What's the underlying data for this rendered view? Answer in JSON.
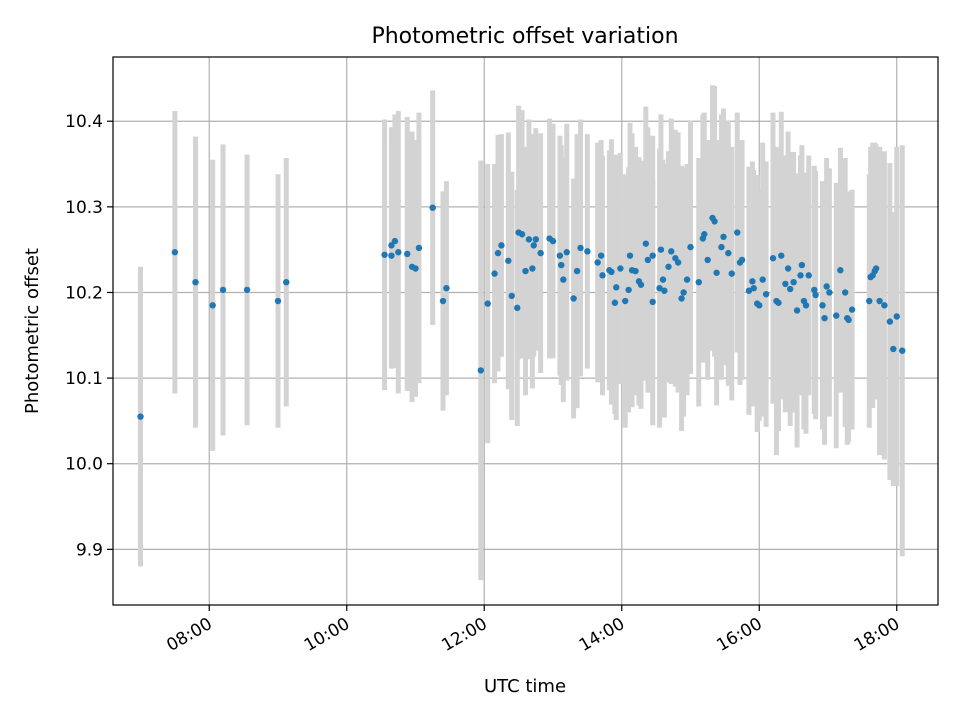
{
  "chart_data": {
    "type": "scatter",
    "title": "Photometric offset variation",
    "xlabel": "UTC time",
    "ylabel": "Photometric offset",
    "grid": true,
    "x_unit": "hours (UTC)",
    "xlim": [
      6.6,
      18.6
    ],
    "ylim": [
      9.835,
      10.475
    ],
    "xticks": [
      {
        "value": 8,
        "label": "08:00"
      },
      {
        "value": 10,
        "label": "10:00"
      },
      {
        "value": 12,
        "label": "12:00"
      },
      {
        "value": 14,
        "label": "14:00"
      },
      {
        "value": 16,
        "label": "16:00"
      },
      {
        "value": 18,
        "label": "18:00"
      }
    ],
    "yticks": [
      {
        "value": 9.9,
        "label": "9.9"
      },
      {
        "value": 10.0,
        "label": "10.0"
      },
      {
        "value": 10.1,
        "label": "10.1"
      },
      {
        "value": 10.2,
        "label": "10.2"
      },
      {
        "value": 10.3,
        "label": "10.3"
      },
      {
        "value": 10.4,
        "label": "10.4"
      }
    ],
    "colors": {
      "point": "#1f77b4",
      "errorbar": "#d3d3d3",
      "grid": "#b0b0b0",
      "axes": "#000000"
    },
    "series": [
      {
        "name": "offset",
        "points": [
          [
            7.0,
            10.055,
            0.175
          ],
          [
            7.5,
            10.247,
            0.165
          ],
          [
            7.8,
            10.212,
            0.17
          ],
          [
            8.05,
            10.185,
            0.17
          ],
          [
            8.2,
            10.203,
            0.17
          ],
          [
            8.55,
            10.203,
            0.158
          ],
          [
            9.0,
            10.19,
            0.148
          ],
          [
            9.12,
            10.212,
            0.145
          ],
          [
            10.55,
            10.244,
            0.158
          ],
          [
            10.65,
            10.255,
            0.138
          ],
          [
            10.7,
            10.26,
            0.148
          ],
          [
            10.65,
            10.243,
            0.132
          ],
          [
            10.75,
            10.247,
            0.165
          ],
          [
            10.88,
            10.245,
            0.16
          ],
          [
            10.95,
            10.23,
            0.158
          ],
          [
            11.0,
            10.228,
            0.15
          ],
          [
            11.05,
            10.252,
            0.158
          ],
          [
            11.25,
            10.299,
            0.137
          ],
          [
            11.4,
            10.19,
            0.128
          ],
          [
            11.45,
            10.205,
            0.125
          ],
          [
            11.95,
            10.109,
            0.245
          ],
          [
            12.05,
            10.187,
            0.163
          ],
          [
            12.15,
            10.222,
            0.128
          ],
          [
            12.2,
            10.246,
            0.138
          ],
          [
            12.25,
            10.255,
            0.13
          ],
          [
            12.35,
            10.237,
            0.15
          ],
          [
            12.4,
            10.196,
            0.145
          ],
          [
            12.48,
            10.182,
            0.138
          ],
          [
            12.5,
            10.27,
            0.148
          ],
          [
            12.55,
            10.268,
            0.145
          ],
          [
            12.6,
            10.225,
            0.145
          ],
          [
            12.65,
            10.262,
            0.14
          ],
          [
            12.7,
            10.228,
            0.14
          ],
          [
            12.72,
            10.255,
            0.13
          ],
          [
            12.75,
            10.262,
            0.13
          ],
          [
            12.82,
            10.246,
            0.14
          ],
          [
            12.95,
            10.263,
            0.14
          ],
          [
            13.0,
            10.26,
            0.137
          ],
          [
            13.1,
            10.243,
            0.14
          ],
          [
            13.12,
            10.232,
            0.14
          ],
          [
            13.15,
            10.215,
            0.143
          ],
          [
            13.2,
            10.247,
            0.15
          ],
          [
            13.3,
            10.193,
            0.14
          ],
          [
            13.35,
            10.225,
            0.16
          ],
          [
            13.4,
            10.252,
            0.15
          ],
          [
            13.5,
            10.248,
            0.137
          ],
          [
            13.65,
            10.235,
            0.14
          ],
          [
            13.7,
            10.243,
            0.135
          ],
          [
            13.72,
            10.22,
            0.14
          ],
          [
            13.82,
            10.226,
            0.14
          ],
          [
            13.85,
            10.224,
            0.155
          ],
          [
            13.9,
            10.188,
            0.13
          ],
          [
            13.92,
            10.206,
            0.155
          ],
          [
            13.98,
            10.228,
            0.135
          ],
          [
            14.05,
            10.19,
            0.148
          ],
          [
            14.1,
            10.203,
            0.143
          ],
          [
            14.12,
            10.243,
            0.155
          ],
          [
            14.15,
            10.226,
            0.16
          ],
          [
            14.2,
            10.225,
            0.145
          ],
          [
            14.25,
            10.213,
            0.145
          ],
          [
            14.28,
            10.209,
            0.145
          ],
          [
            14.35,
            10.257,
            0.16
          ],
          [
            14.38,
            10.238,
            0.155
          ],
          [
            14.45,
            10.243,
            0.14
          ],
          [
            14.45,
            10.189,
            0.144
          ],
          [
            14.55,
            10.205,
            0.163
          ],
          [
            14.57,
            10.25,
            0.158
          ],
          [
            14.6,
            10.215,
            0.14
          ],
          [
            14.62,
            10.202,
            0.148
          ],
          [
            14.68,
            10.23,
            0.135
          ],
          [
            14.72,
            10.248,
            0.155
          ],
          [
            14.78,
            10.24,
            0.15
          ],
          [
            14.82,
            10.235,
            0.152
          ],
          [
            14.87,
            10.193,
            0.155
          ],
          [
            14.9,
            10.2,
            0.145
          ],
          [
            14.95,
            10.215,
            0.135
          ],
          [
            15.0,
            10.253,
            0.148
          ],
          [
            15.12,
            10.212,
            0.145
          ],
          [
            15.18,
            10.263,
            0.145
          ],
          [
            15.2,
            10.268,
            0.142
          ],
          [
            15.25,
            10.238,
            0.14
          ],
          [
            15.32,
            10.287,
            0.155
          ],
          [
            15.35,
            10.283,
            0.158
          ],
          [
            15.38,
            10.223,
            0.155
          ],
          [
            15.45,
            10.253,
            0.155
          ],
          [
            15.48,
            10.265,
            0.15
          ],
          [
            15.55,
            10.246,
            0.155
          ],
          [
            15.6,
            10.222,
            0.148
          ],
          [
            15.68,
            10.27,
            0.14
          ],
          [
            15.72,
            10.235,
            0.143
          ],
          [
            15.75,
            10.238,
            0.14
          ],
          [
            15.85,
            10.202,
            0.145
          ],
          [
            15.9,
            10.213,
            0.14
          ],
          [
            15.92,
            10.205,
            0.138
          ],
          [
            15.97,
            10.187,
            0.15
          ],
          [
            16.0,
            10.185,
            0.135
          ],
          [
            16.05,
            10.215,
            0.16
          ],
          [
            16.1,
            10.198,
            0.155
          ],
          [
            16.2,
            10.24,
            0.17
          ],
          [
            16.25,
            10.19,
            0.18
          ],
          [
            16.28,
            10.188,
            0.15
          ],
          [
            16.32,
            10.243,
            0.168
          ],
          [
            16.38,
            10.21,
            0.15
          ],
          [
            16.42,
            10.228,
            0.16
          ],
          [
            16.45,
            10.204,
            0.16
          ],
          [
            16.5,
            10.212,
            0.152
          ],
          [
            16.55,
            10.179,
            0.16
          ],
          [
            16.6,
            10.22,
            0.14
          ],
          [
            16.62,
            10.232,
            0.14
          ],
          [
            16.65,
            10.19,
            0.15
          ],
          [
            16.68,
            10.185,
            0.15
          ],
          [
            16.72,
            10.22,
            0.14
          ],
          [
            16.8,
            10.203,
            0.145
          ],
          [
            16.82,
            10.197,
            0.145
          ],
          [
            16.92,
            10.185,
            0.145
          ],
          [
            16.95,
            10.17,
            0.148
          ],
          [
            16.98,
            10.207,
            0.15
          ],
          [
            17.02,
            10.2,
            0.145
          ],
          [
            17.12,
            10.173,
            0.155
          ],
          [
            17.18,
            10.226,
            0.143
          ],
          [
            17.25,
            10.2,
            0.157
          ],
          [
            17.28,
            10.17,
            0.148
          ],
          [
            17.3,
            10.168,
            0.143
          ],
          [
            17.35,
            10.18,
            0.14
          ],
          [
            17.6,
            10.19,
            0.148
          ],
          [
            17.62,
            10.218,
            0.152
          ],
          [
            17.65,
            10.22,
            0.155
          ],
          [
            17.68,
            10.225,
            0.15
          ],
          [
            17.7,
            10.228,
            0.145
          ],
          [
            17.75,
            10.19,
            0.18
          ],
          [
            17.82,
            10.185,
            0.18
          ],
          [
            17.9,
            10.166,
            0.185
          ],
          [
            17.95,
            10.134,
            0.16
          ],
          [
            18.0,
            10.172,
            0.198
          ],
          [
            18.08,
            10.132,
            0.24
          ]
        ]
      }
    ]
  }
}
